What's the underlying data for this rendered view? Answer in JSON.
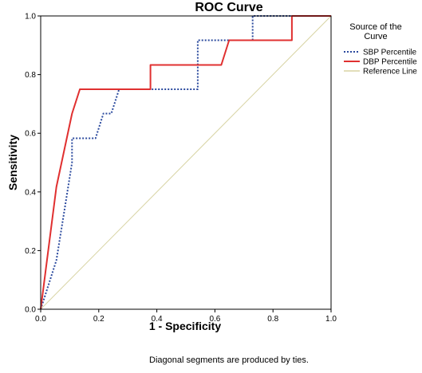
{
  "chart_data": {
    "type": "line",
    "title": "ROC Curve",
    "xlabel": "1 - Specificity",
    "ylabel": "Sensitivity",
    "xlim": [
      0,
      1
    ],
    "ylim": [
      0,
      1
    ],
    "x_ticks": [
      "0.0",
      "0.2",
      "0.4",
      "0.6",
      "0.8",
      "1.0"
    ],
    "y_ticks": [
      "0.0",
      "0.2",
      "0.4",
      "0.6",
      "0.8",
      "1.0"
    ],
    "grid": false,
    "legend": {
      "title": "Source of the Curve",
      "title_lines": [
        "Source of the",
        "Curve"
      ],
      "placement": "right"
    },
    "footnote": "Diagonal segments are produced by ties.",
    "series": [
      {
        "name": "SBP Percentile",
        "color": "#2b4a9e",
        "style": "dotted",
        "points": [
          [
            0.0,
            0.0
          ],
          [
            0.027,
            0.083
          ],
          [
            0.054,
            0.167
          ],
          [
            0.081,
            0.333
          ],
          [
            0.108,
            0.5
          ],
          [
            0.108,
            0.583
          ],
          [
            0.189,
            0.583
          ],
          [
            0.216,
            0.667
          ],
          [
            0.243,
            0.667
          ],
          [
            0.27,
            0.75
          ],
          [
            0.541,
            0.75
          ],
          [
            0.541,
            0.917
          ],
          [
            0.73,
            0.917
          ],
          [
            0.73,
            1.0
          ],
          [
            1.0,
            1.0
          ]
        ]
      },
      {
        "name": "DBP Percentile",
        "color": "#e03030",
        "style": "solid",
        "points": [
          [
            0.0,
            0.0
          ],
          [
            0.054,
            0.417
          ],
          [
            0.108,
            0.667
          ],
          [
            0.135,
            0.75
          ],
          [
            0.378,
            0.75
          ],
          [
            0.378,
            0.833
          ],
          [
            0.622,
            0.833
          ],
          [
            0.649,
            0.917
          ],
          [
            0.865,
            0.917
          ],
          [
            0.865,
            1.0
          ],
          [
            1.0,
            1.0
          ]
        ]
      },
      {
        "name": "Reference Line",
        "color": "#d8d4a4",
        "style": "solid",
        "points": [
          [
            0.0,
            0.0
          ],
          [
            1.0,
            1.0
          ]
        ]
      }
    ]
  }
}
